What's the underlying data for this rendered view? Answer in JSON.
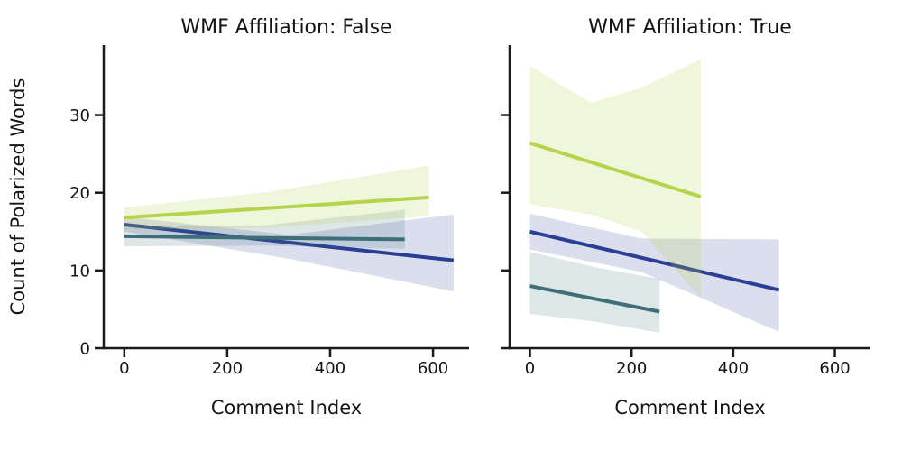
{
  "figure": {
    "background": "#ffffff",
    "text_color": "#141414",
    "spine_color": "#1a1a1a"
  },
  "chart_data": {
    "type": "line",
    "description": "Two-facet regression plot (lmplot style) with confidence bands, no scatter points, no legend",
    "xlabel": "Comment Index",
    "ylabel": "Count of Polarized Words",
    "xlim": [
      -40,
      670
    ],
    "ylim": [
      0,
      39
    ],
    "xticks": [
      0,
      200,
      400,
      600
    ],
    "yticks": [
      0,
      10,
      20,
      30
    ],
    "grid": false,
    "panels": [
      {
        "title": "WMF Affiliation: False",
        "show_ytick_labels": true,
        "series": [
          {
            "name": "series-navy",
            "color": "#2b3e95",
            "band_opacity": 0.17,
            "line_x": [
              0,
              640
            ],
            "line_y": [
              15.9,
              11.3
            ],
            "band_x": [
              0,
              320,
              640
            ],
            "band_upper": [
              16.9,
              14.6,
              17.2
            ],
            "band_lower": [
              15.0,
              11.5,
              7.3
            ]
          },
          {
            "name": "series-teal",
            "color": "#3e6f78",
            "band_opacity": 0.17,
            "line_x": [
              0,
              545
            ],
            "line_y": [
              14.4,
              14.0
            ],
            "band_x": [
              0,
              272,
              545
            ],
            "band_upper": [
              15.6,
              15.8,
              17.8
            ],
            "band_lower": [
              13.1,
              13.2,
              12.8
            ]
          },
          {
            "name": "series-green",
            "color": "#b4d44b",
            "band_opacity": 0.2,
            "line_x": [
              0,
              592
            ],
            "line_y": [
              16.8,
              19.4
            ],
            "band_x": [
              0,
              281,
              592
            ],
            "band_upper": [
              18.1,
              20.1,
              23.5
            ],
            "band_lower": [
              15.2,
              15.5,
              17.0
            ]
          }
        ]
      },
      {
        "title": "WMF Affiliation: True",
        "show_ytick_labels": false,
        "series": [
          {
            "name": "series-navy",
            "color": "#2b3e95",
            "band_opacity": 0.17,
            "line_x": [
              0,
              490
            ],
            "line_y": [
              15.0,
              7.5
            ],
            "band_x": [
              0,
              220,
              490
            ],
            "band_upper": [
              17.3,
              14.1,
              14.0
            ],
            "band_lower": [
              12.7,
              9.8,
              2.1
            ]
          },
          {
            "name": "series-teal",
            "color": "#3e6f78",
            "band_opacity": 0.17,
            "line_x": [
              0,
              255
            ],
            "line_y": [
              8.0,
              4.7
            ],
            "band_x": [
              0,
              130,
              255
            ],
            "band_upper": [
              12.4,
              10.4,
              8.9
            ],
            "band_lower": [
              4.4,
              3.4,
              2.0
            ]
          },
          {
            "name": "series-green",
            "color": "#b4d44b",
            "band_opacity": 0.2,
            "line_x": [
              0,
              336
            ],
            "line_y": [
              26.4,
              19.5
            ],
            "band_x": [
              0,
              120,
              220,
              336
            ],
            "band_upper": [
              36.3,
              31.6,
              33.5,
              37.2
            ],
            "band_lower": [
              18.5,
              17.2,
              15.0,
              6.5
            ]
          }
        ]
      }
    ]
  }
}
